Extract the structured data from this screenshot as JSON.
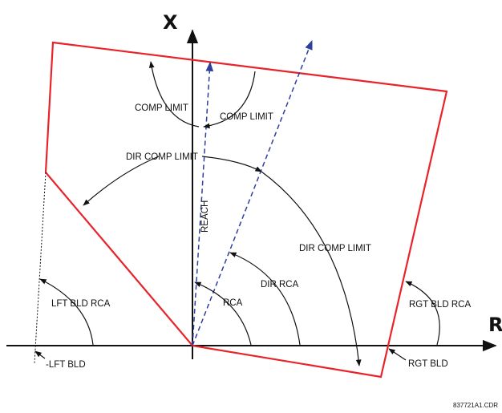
{
  "axes": {
    "x_axis_title": "R",
    "y_axis_title": "X"
  },
  "labels": {
    "comp_limit_left": "COMP LIMIT",
    "comp_limit_right": "COMP LIMIT",
    "dir_comp_limit_top": "DIR COMP LIMIT",
    "dir_comp_limit_right": "DIR COMP LIMIT",
    "reach": "REACH",
    "rca": "RCA",
    "dir_rca": "DIR RCA",
    "lft_bld_rca": "LFT BLD RCA",
    "rgt_bld_rca": "RGT BLD RCA",
    "lft_bld": "-LFT BLD",
    "rgt_bld": "RGT BLD"
  },
  "figure_id": "837721A1.CDR",
  "colors": {
    "characteristic": "#e8232a",
    "reach_line": "#2e3f9e",
    "axes": "#111111"
  }
}
